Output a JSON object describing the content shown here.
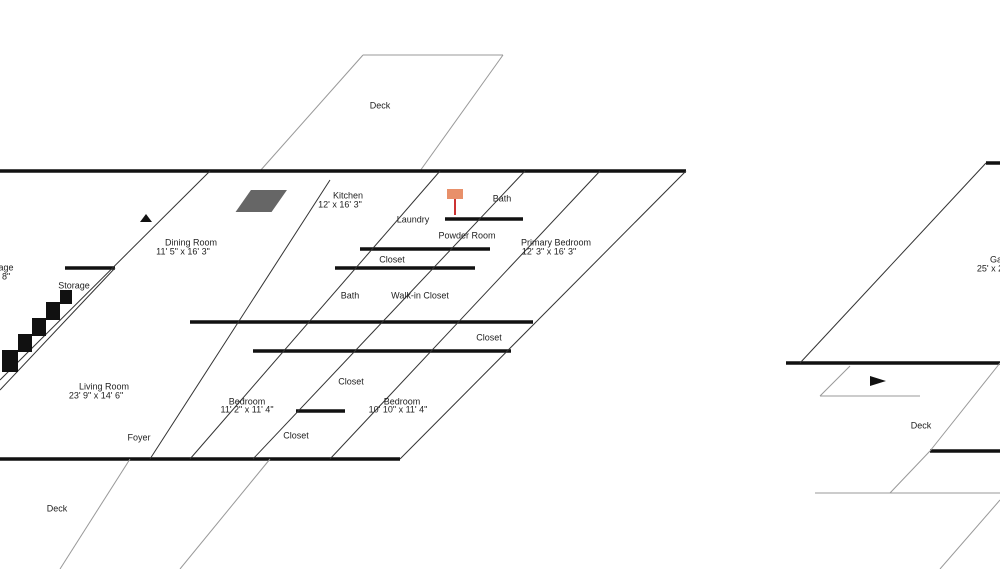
{
  "plan": {
    "rooms": [
      {
        "name": "Deck"
      },
      {
        "name": "Kitchen",
        "size": "12' x 16' 3\""
      },
      {
        "name": "Laundry"
      },
      {
        "name": "Bath"
      },
      {
        "name": "Powder Room"
      },
      {
        "name": "Primary Bedroom",
        "size": "12' 3\" x 16' 3\""
      },
      {
        "name": "Dining Room",
        "size": "11' 5\" x 16' 3\""
      },
      {
        "name": "Closet"
      },
      {
        "name": "Bath"
      },
      {
        "name": "Walk-in Closet"
      },
      {
        "name": "Closet"
      },
      {
        "name": "Storage"
      },
      {
        "name": "age",
        "size": "' 8\""
      },
      {
        "name": "Living Room",
        "size": "23' 9\" x 14' 6\""
      },
      {
        "name": "Bedroom",
        "size": "11' 2\" x 11' 4\""
      },
      {
        "name": "Bedroom",
        "size": "10' 10\" x 11' 4\""
      },
      {
        "name": "Closet"
      },
      {
        "name": "Closet"
      },
      {
        "name": "Foyer"
      },
      {
        "name": "Deck"
      },
      {
        "name": "Ga",
        "size": "25' x 2"
      },
      {
        "name": "Deck"
      }
    ]
  }
}
